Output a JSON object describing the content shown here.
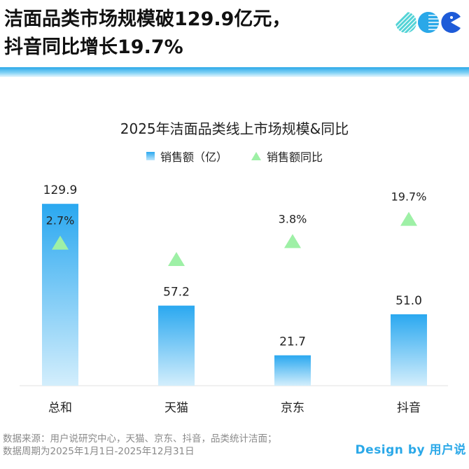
{
  "headline": {
    "line1": "洁面品类市场规模破129.9亿元，",
    "line2": "抖音同比增长19.7%"
  },
  "logo": {
    "icon": "brand-logo-icons",
    "colors": [
      "#54d3d6",
      "#2aa8e8",
      "#1e5bd8"
    ]
  },
  "chart_data": {
    "type": "bar",
    "title": "2025年洁面品类线上市场规模&同比",
    "categories": [
      "总和",
      "天猫",
      "京东",
      "抖音"
    ],
    "series": [
      {
        "name": "销售额（亿）",
        "type": "bar",
        "values": [
          129.9,
          57.2,
          21.7,
          51.0
        ],
        "labels": [
          "129.9",
          "57.2",
          "21.7",
          "51.0"
        ],
        "color": "#2aa8f0"
      },
      {
        "name": "销售额同比",
        "type": "scatter",
        "marker": "triangle",
        "values": [
          2.7,
          null,
          3.8,
          19.7
        ],
        "labels": [
          "2.7%",
          "",
          "3.8%",
          "19.7%"
        ],
        "color": "#9ef0a6"
      }
    ],
    "legend_position": "top-center",
    "grid": false
  },
  "footer": {
    "source_line1": "数据来源：用户说研究中心，天猫、京东、抖音，品类统计洁面；",
    "source_line2": "数据周期为2025年1月1日-2025年12月31日",
    "brand": "Design by 用户说"
  }
}
